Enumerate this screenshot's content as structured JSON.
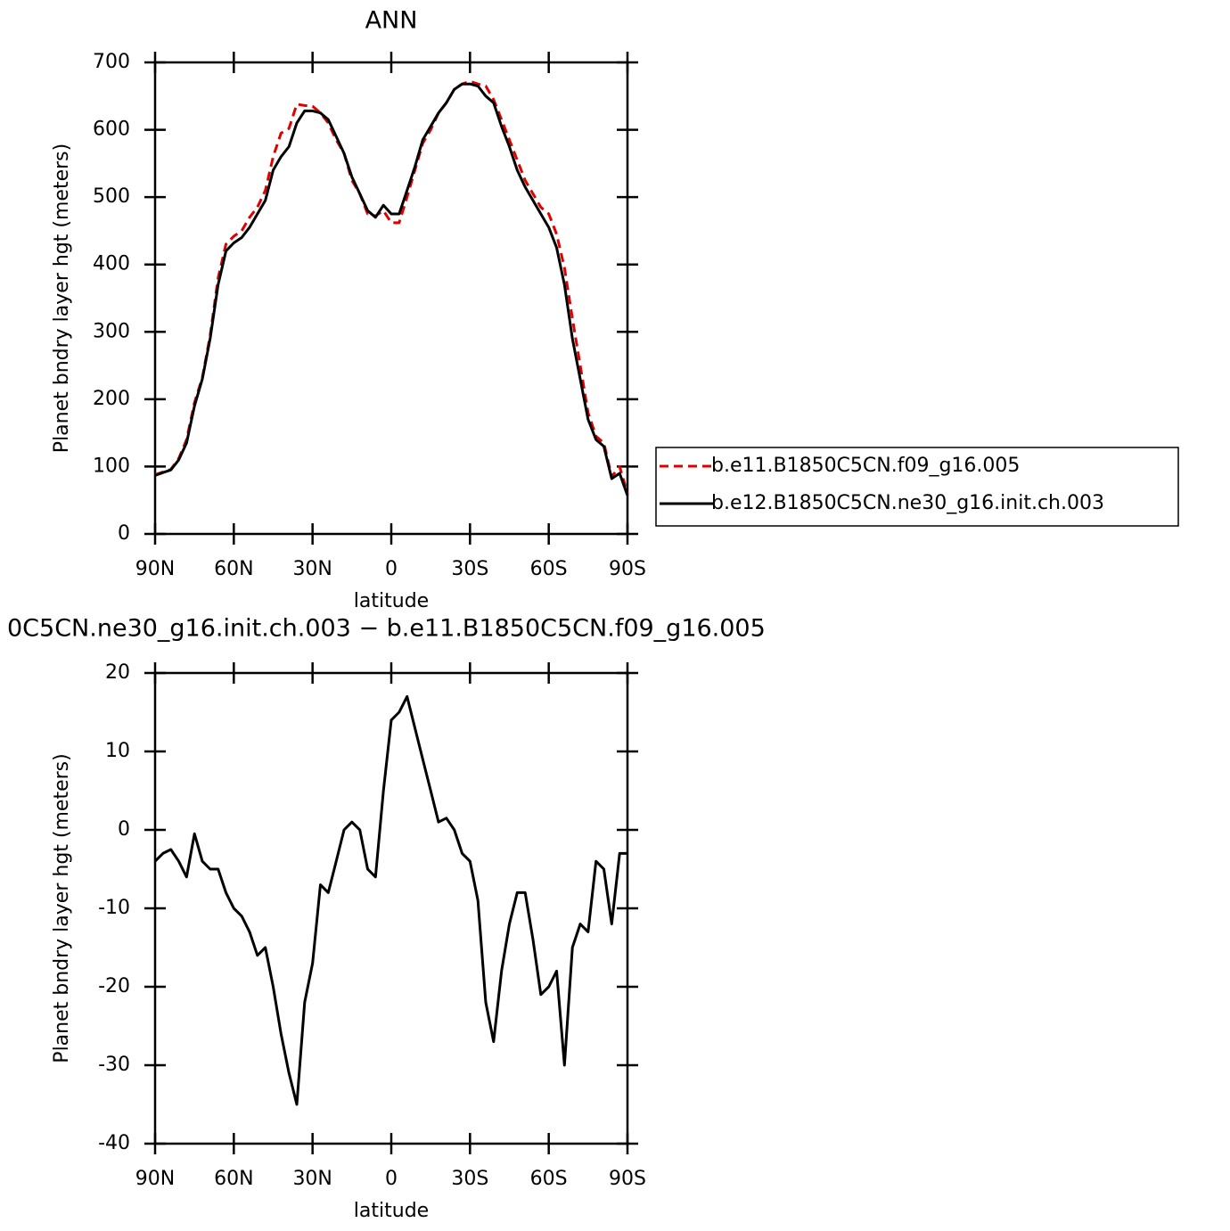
{
  "chart_data": [
    {
      "type": "line",
      "title": "ANN",
      "xlabel": "latitude",
      "ylabel": "Planet bndry layer hgt (meters)",
      "x": [
        90,
        87,
        84,
        81,
        78,
        75,
        72,
        69,
        66,
        63,
        60,
        57,
        54,
        51,
        48,
        45,
        42,
        39,
        36,
        33,
        30,
        27,
        24,
        21,
        18,
        15,
        12,
        9,
        6,
        3,
        0,
        -3,
        -6,
        -9,
        -12,
        -15,
        -18,
        -21,
        -24,
        -27,
        -30,
        -33,
        -36,
        -39,
        -42,
        -45,
        -48,
        -51,
        -54,
        -57,
        -60,
        -63,
        -66,
        -69,
        -72,
        -75,
        -78,
        -81,
        -84,
        -87,
        -90
      ],
      "xlim": [
        90,
        -90
      ],
      "xticks": [
        {
          "value": 90,
          "label": "90N"
        },
        {
          "value": 60,
          "label": "60N"
        },
        {
          "value": 30,
          "label": "30N"
        },
        0,
        {
          "value": -30,
          "label": "30S"
        },
        {
          "value": -60,
          "label": "60S"
        },
        {
          "value": -90,
          "label": "90S"
        }
      ],
      "ylim": [
        0,
        700
      ],
      "yticks": [
        0,
        100,
        200,
        300,
        400,
        500,
        600,
        700
      ],
      "legend": "right",
      "series": [
        {
          "name": "b.e11.B1850C5CN.f09_g16.005",
          "color": "#e00000",
          "linestyle": "dashed",
          "values": [
            88,
            92,
            96,
            112,
            140,
            195,
            232,
            295,
            380,
            430,
            442,
            450,
            470,
            485,
            510,
            560,
            595,
            602,
            638,
            636,
            635,
            625,
            610,
            585,
            565,
            525,
            505,
            475,
            472,
            480,
            462,
            462,
            500,
            540,
            580,
            600,
            625,
            640,
            660,
            668,
            672,
            668,
            665,
            645,
            615,
            585,
            555,
            525,
            505,
            485,
            475,
            445,
            395,
            320,
            250,
            180,
            145,
            135,
            85,
            100,
            60
          ]
        },
        {
          "name": "b.e12.B1850C5CN.ne30_g16.init.ch.003",
          "color": "#000000",
          "linestyle": "solid",
          "values": [
            87,
            91,
            95,
            110,
            135,
            190,
            230,
            290,
            370,
            420,
            432,
            440,
            455,
            475,
            495,
            540,
            560,
            575,
            610,
            628,
            628,
            625,
            615,
            590,
            565,
            530,
            505,
            480,
            470,
            488,
            475,
            475,
            510,
            545,
            585,
            605,
            625,
            640,
            660,
            668,
            668,
            665,
            650,
            640,
            605,
            575,
            540,
            515,
            495,
            475,
            455,
            425,
            370,
            290,
            230,
            170,
            140,
            130,
            82,
            90,
            57
          ]
        }
      ]
    },
    {
      "type": "line",
      "title": "0C5CN.ne30_g16.init.ch.003 − b.e11.B1850C5CN.f09_g16.005",
      "xlabel": "latitude",
      "ylabel": "Planet bndry layer hgt (meters)",
      "x": [
        90,
        87,
        84,
        81,
        78,
        75,
        72,
        69,
        66,
        63,
        60,
        57,
        54,
        51,
        48,
        45,
        42,
        39,
        36,
        33,
        30,
        27,
        24,
        21,
        18,
        15,
        12,
        9,
        6,
        3,
        0,
        -3,
        -6,
        -9,
        -12,
        -15,
        -18,
        -21,
        -24,
        -27,
        -30,
        -33,
        -36,
        -39,
        -42,
        -45,
        -48,
        -51,
        -54,
        -57,
        -60,
        -63,
        -66,
        -69,
        -72,
        -75,
        -78,
        -81,
        -84,
        -87,
        -90
      ],
      "xlim": [
        90,
        -90
      ],
      "xticks": [
        {
          "value": 90,
          "label": "90N"
        },
        {
          "value": 60,
          "label": "60N"
        },
        {
          "value": 30,
          "label": "30N"
        },
        0,
        {
          "value": -30,
          "label": "30S"
        },
        {
          "value": -60,
          "label": "60S"
        },
        {
          "value": -90,
          "label": "90S"
        }
      ],
      "ylim": [
        -40,
        20
      ],
      "yticks": [
        -40,
        -30,
        -20,
        -10,
        0,
        10,
        20
      ],
      "series": [
        {
          "color": "#000000",
          "linestyle": "solid",
          "values": [
            -4,
            -3,
            -2.5,
            -4,
            -6,
            -0.5,
            -4,
            -5,
            -5,
            -8,
            -10,
            -11,
            -13,
            -16,
            -15,
            -20,
            -26,
            -31,
            -35,
            -22,
            -17,
            -7,
            -8,
            -4,
            0,
            1,
            0,
            -5,
            -6,
            5,
            14,
            15,
            17,
            13,
            9,
            5,
            1,
            1.5,
            0,
            -3,
            -4,
            -9,
            -22,
            -27,
            -18,
            -12,
            -8,
            -8,
            -14,
            -21,
            -20,
            -18,
            -30,
            -15,
            -12,
            -13,
            -4,
            -5,
            -12,
            -3,
            -3
          ]
        }
      ]
    }
  ]
}
